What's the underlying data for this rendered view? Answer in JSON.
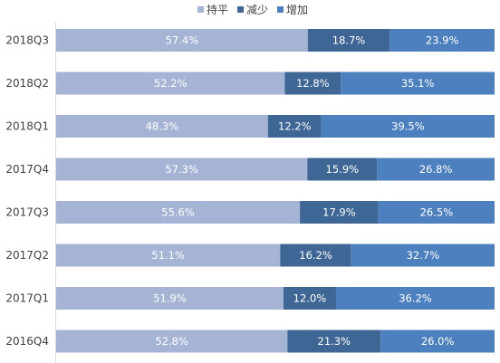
{
  "chart_data": {
    "type": "bar",
    "orientation": "horizontal",
    "stacked": "percent",
    "title": "",
    "xlabel": "",
    "ylabel": "",
    "legend_position": "top",
    "grid": false,
    "categories": [
      "2018Q3",
      "2018Q2",
      "2018Q1",
      "2017Q4",
      "2017Q3",
      "2017Q2",
      "2017Q1",
      "2016Q4"
    ],
    "series": [
      {
        "name": "持平",
        "color": "#A5B4D4",
        "values": [
          57.4,
          52.2,
          48.3,
          57.3,
          55.6,
          51.1,
          51.9,
          52.8
        ],
        "labels": [
          "57.4%",
          "52.2%",
          "48.3%",
          "57.3%",
          "55.6%",
          "51.1%",
          "51.9%",
          "52.8%"
        ]
      },
      {
        "name": "减少",
        "color": "#3F6796",
        "values": [
          18.7,
          12.8,
          12.2,
          15.9,
          17.9,
          16.2,
          12.0,
          21.3
        ],
        "labels": [
          "18.7%",
          "12.8%",
          "12.2%",
          "15.9%",
          "17.9%",
          "16.2%",
          "12.0%",
          "21.3%"
        ]
      },
      {
        "name": "增加",
        "color": "#4D80BE",
        "values": [
          23.9,
          35.1,
          39.5,
          26.8,
          26.5,
          32.7,
          36.2,
          26.0
        ],
        "labels": [
          "23.9%",
          "35.1%",
          "39.5%",
          "26.8%",
          "26.5%",
          "32.7%",
          "36.2%",
          "26.0%"
        ]
      }
    ]
  }
}
